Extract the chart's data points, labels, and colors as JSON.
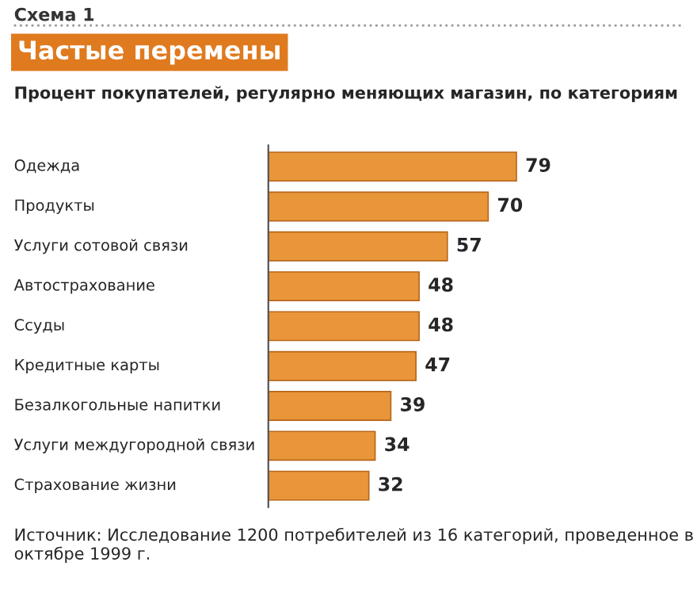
{
  "chart_data": {
    "type": "bar",
    "orientation": "horizontal",
    "title": "Частые перемены",
    "subtitle": "Процент покупателей, регулярно меняющих магазин, по категориям",
    "categories": [
      "Одежда",
      "Продукты",
      "Услуги сотовой связи",
      "Автострахование",
      "Ссуды",
      "Кредитные карты",
      "Безалкогольные напитки",
      "Услуги междугородной связи",
      "Страхование жизни"
    ],
    "values": [
      79,
      70,
      57,
      48,
      48,
      47,
      39,
      34,
      32
    ],
    "color": "#e9963a",
    "data_labels": true,
    "annotations": [
      "Схема 1",
      "Источник: Исследование 1200 потребителей из 16 категорий, проведенное в октябре 1999 г."
    ]
  }
}
